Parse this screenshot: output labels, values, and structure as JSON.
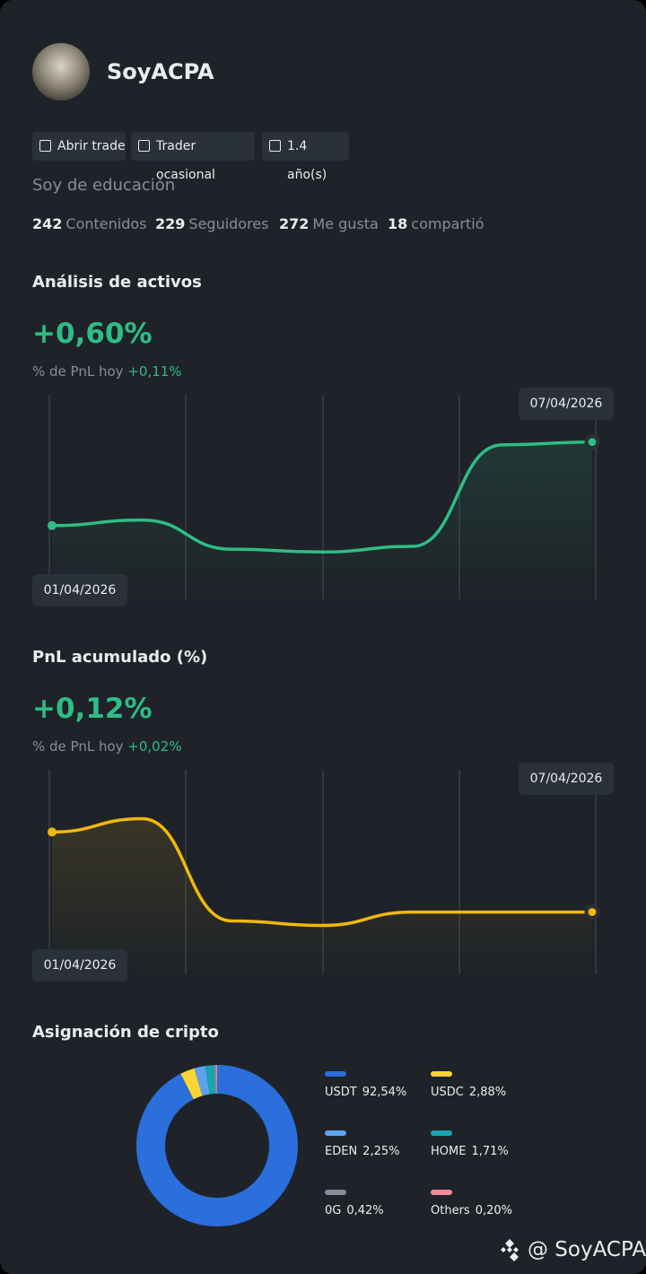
{
  "profile": {
    "name": "SoyACPA",
    "tags": [
      "Abrir trade",
      "Trader ocasional",
      "1.4 año(s)"
    ],
    "bio": "Soy de educación",
    "stats": [
      {
        "value": 242,
        "label": "Contenidos"
      },
      {
        "value": 229,
        "label": "Seguidores"
      },
      {
        "value": 272,
        "label": "Me gusta"
      },
      {
        "value": 18,
        "label": "compartió"
      }
    ]
  },
  "chart_data": [
    {
      "type": "line",
      "title": "Análisis de activos",
      "headline": "+0,60%",
      "subtitle": "% de PnL hoy",
      "subtitle_value": "+0,11%",
      "x": [
        "01/04/2026",
        null,
        null,
        null,
        null,
        null,
        "07/04/2026"
      ],
      "values": [
        0.0,
        0.04,
        -0.17,
        -0.19,
        -0.15,
        0.58,
        0.6
      ],
      "color": "#2ebd85",
      "ylim": [
        -0.53,
        0.94
      ]
    },
    {
      "type": "line",
      "title": "PnL acumulado (%)",
      "headline": "+0,12%",
      "subtitle": "% de PnL hoy",
      "subtitle_value": "+0,02%",
      "x": [
        "01/04/2026",
        null,
        null,
        null,
        null,
        null,
        "07/04/2026"
      ],
      "values": [
        0.3,
        0.33,
        0.1,
        0.09,
        0.12,
        0.12,
        0.12
      ],
      "color": "#f0b90b",
      "ylim": [
        -0.02,
        0.44
      ]
    },
    {
      "type": "pie",
      "title": "Asignación de cripto",
      "categories": [
        "USDT",
        "USDC",
        "EDEN",
        "HOME",
        "0G",
        "Others"
      ],
      "values": [
        92.54,
        2.88,
        2.25,
        1.71,
        0.42,
        0.2
      ],
      "value_labels": [
        "92,54%",
        "2,88%",
        "2,25%",
        "1,71%",
        "0,42%",
        "0,20%"
      ],
      "colors": [
        "#2a6fdb",
        "#fcd535",
        "#5ea2ef",
        "#16a5b1",
        "#848e9c",
        "#f08c9b"
      ]
    }
  ],
  "watermark": "@ SoyACPA"
}
